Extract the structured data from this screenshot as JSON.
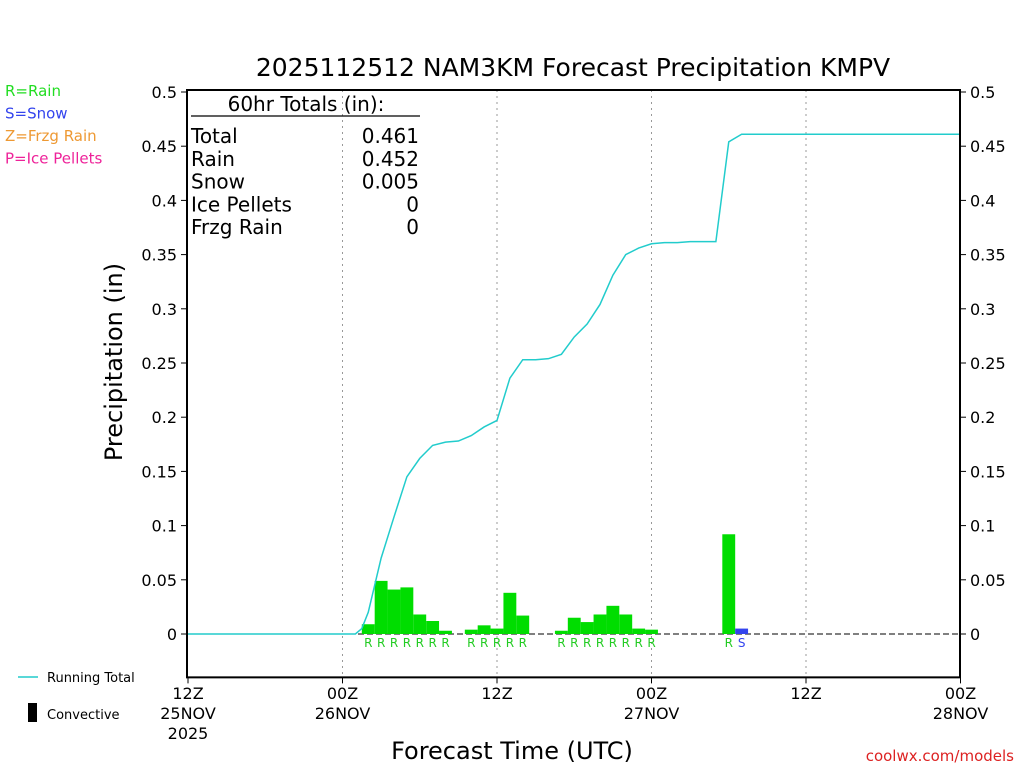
{
  "chart_data": {
    "type": "bar",
    "title": "2025112512 NAM3KM Forecast Precipitation KMPV",
    "xlabel": "Forecast Time (UTC)",
    "ylabel": "Precipitation (in)",
    "ylim": [
      -0.04,
      0.5
    ],
    "xlim_hours": [
      0,
      60
    ],
    "y_ticks": [
      {
        "v": 0,
        "label": "0"
      },
      {
        "v": 0.05,
        "label": "0.05"
      },
      {
        "v": 0.1,
        "label": "0.1"
      },
      {
        "v": 0.15,
        "label": "0.15"
      },
      {
        "v": 0.2,
        "label": "0.2"
      },
      {
        "v": 0.25,
        "label": "0.25"
      },
      {
        "v": 0.3,
        "label": "0.3"
      },
      {
        "v": 0.35,
        "label": "0.35"
      },
      {
        "v": 0.4,
        "label": "0.4"
      },
      {
        "v": 0.45,
        "label": "0.45"
      },
      {
        "v": 0.5,
        "label": "0.5"
      }
    ],
    "x_ticks": [
      {
        "h": 0,
        "time": "12Z",
        "date": "25NOV",
        "year": "2025"
      },
      {
        "h": 12,
        "time": "00Z",
        "date": "26NOV",
        "year": ""
      },
      {
        "h": 24,
        "time": "12Z",
        "date": "",
        "year": ""
      },
      {
        "h": 36,
        "time": "00Z",
        "date": "27NOV",
        "year": ""
      },
      {
        "h": 48,
        "time": "12Z",
        "date": "",
        "year": ""
      },
      {
        "h": 60,
        "time": "00Z",
        "date": "28NOV",
        "year": ""
      }
    ],
    "gridlines_hours": [
      12,
      24,
      36,
      48
    ],
    "legend_types": [
      {
        "text": "R=Rain",
        "color": "#22dd22"
      },
      {
        "text": "S=Snow",
        "color": "#3344ee"
      },
      {
        "text": "Z=Frzg Rain",
        "color": "#ee9933"
      },
      {
        "text": "P=Ice Pellets",
        "color": "#ee2299"
      }
    ],
    "legend_running_total": "Running Total",
    "legend_convective": "Convective",
    "totals": {
      "header": "60hr Totals (in):",
      "rows": [
        {
          "label": "Total",
          "value": "0.461"
        },
        {
          "label": "Rain",
          "value": "0.452"
        },
        {
          "label": "Snow",
          "value": "0.005"
        },
        {
          "label": "Ice Pellets",
          "value": "0"
        },
        {
          "label": "Frzg Rain",
          "value": "0"
        }
      ]
    },
    "bars": [
      {
        "h": 14,
        "value": 0.009,
        "type": "R"
      },
      {
        "h": 15,
        "value": 0.049,
        "type": "R"
      },
      {
        "h": 16,
        "value": 0.041,
        "type": "R"
      },
      {
        "h": 17,
        "value": 0.043,
        "type": "R"
      },
      {
        "h": 18,
        "value": 0.018,
        "type": "R"
      },
      {
        "h": 19,
        "value": 0.012,
        "type": "R"
      },
      {
        "h": 20,
        "value": 0.003,
        "type": "R"
      },
      {
        "h": 22,
        "value": 0.004,
        "type": "R"
      },
      {
        "h": 23,
        "value": 0.008,
        "type": "R"
      },
      {
        "h": 24,
        "value": 0.005,
        "type": "R"
      },
      {
        "h": 25,
        "value": 0.038,
        "type": "R"
      },
      {
        "h": 26,
        "value": 0.017,
        "type": "R"
      },
      {
        "h": 29,
        "value": 0.003,
        "type": "R"
      },
      {
        "h": 30,
        "value": 0.015,
        "type": "R"
      },
      {
        "h": 31,
        "value": 0.011,
        "type": "R"
      },
      {
        "h": 32,
        "value": 0.018,
        "type": "R"
      },
      {
        "h": 33,
        "value": 0.026,
        "type": "R"
      },
      {
        "h": 34,
        "value": 0.018,
        "type": "R"
      },
      {
        "h": 35,
        "value": 0.005,
        "type": "R"
      },
      {
        "h": 36,
        "value": 0.004,
        "type": "R"
      },
      {
        "h": 42,
        "value": 0.092,
        "type": "R"
      },
      {
        "h": 43,
        "value": 0.005,
        "type": "S"
      }
    ],
    "running_total": {
      "x": [
        0,
        13,
        13.5,
        14,
        15,
        16,
        17,
        18,
        19,
        20,
        21,
        22,
        23,
        24,
        25,
        26,
        27,
        28,
        29,
        30,
        31,
        32,
        33,
        34,
        35,
        36,
        37,
        38,
        39,
        40,
        41,
        42,
        43,
        60
      ],
      "y": [
        0,
        0,
        0.005,
        0.02,
        0.07,
        0.108,
        0.145,
        0.162,
        0.174,
        0.177,
        0.178,
        0.183,
        0.191,
        0.197,
        0.236,
        0.253,
        0.253,
        0.254,
        0.258,
        0.274,
        0.286,
        0.304,
        0.331,
        0.35,
        0.356,
        0.36,
        0.361,
        0.361,
        0.362,
        0.362,
        0.362,
        0.454,
        0.461,
        0.461
      ]
    },
    "bar_colors": {
      "R": "#00dd00",
      "S": "#3344ee",
      "Z": "#ee9933",
      "P": "#ee2299"
    },
    "label_colors": {
      "R": "#22cc22",
      "S": "#3344ee",
      "Z": "#ee9933",
      "P": "#ee2299"
    },
    "line_color": "#22cccc"
  },
  "footer": {
    "credit": "coolwx.com/models"
  }
}
